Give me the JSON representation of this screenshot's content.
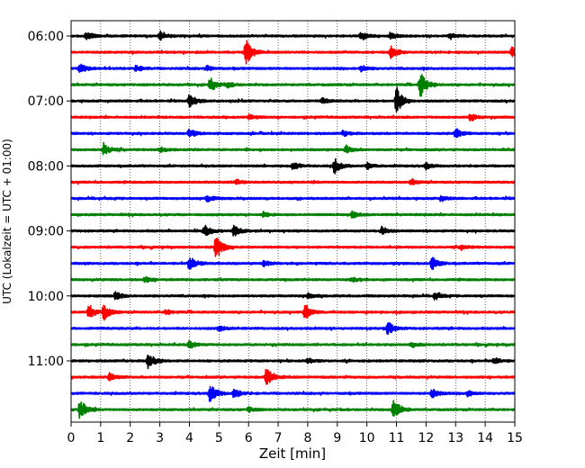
{
  "chart_data": {
    "type": "line",
    "title": "",
    "xlabel": "Zeit  [min]",
    "ylabel": "UTC (Lokalzeit = UTC + 01:00)",
    "xlim": [
      0,
      15
    ],
    "x_ticks": [
      0,
      1,
      2,
      3,
      4,
      5,
      6,
      7,
      8,
      9,
      10,
      11,
      12,
      13,
      14,
      15
    ],
    "row_minutes": 15,
    "y_tick_labels": [
      "06:00",
      "07:00",
      "08:00",
      "09:00",
      "10:00",
      "11:00"
    ],
    "y_tick_rows": [
      0,
      4,
      8,
      12,
      16,
      20
    ],
    "grid": "vertical-dotted",
    "row_colors": [
      "#000000",
      "#ff0000",
      "#0000ff",
      "#008000"
    ],
    "rows": [
      {
        "start": "06:00",
        "events": [
          [
            0.5,
            0.35
          ],
          [
            3.0,
            0.35
          ],
          [
            9.8,
            0.4
          ],
          [
            10.8,
            0.3
          ],
          [
            12.8,
            0.25
          ]
        ]
      },
      {
        "start": "06:15",
        "events": [
          [
            5.9,
            1.1
          ],
          [
            10.8,
            0.5
          ],
          [
            14.9,
            0.4
          ]
        ]
      },
      {
        "start": "06:30",
        "events": [
          [
            0.3,
            0.4
          ],
          [
            2.2,
            0.25
          ],
          [
            4.6,
            0.2
          ],
          [
            9.8,
            0.25
          ]
        ]
      },
      {
        "start": "06:45",
        "events": [
          [
            4.7,
            0.55
          ],
          [
            11.8,
            1.05
          ],
          [
            5.3,
            0.2
          ]
        ]
      },
      {
        "start": "07:00",
        "events": [
          [
            4.0,
            0.55
          ],
          [
            11.0,
            1.2
          ],
          [
            8.5,
            0.2
          ]
        ]
      },
      {
        "start": "07:15",
        "events": [
          [
            13.5,
            0.3
          ],
          [
            6.0,
            0.2
          ]
        ]
      },
      {
        "start": "07:30",
        "events": [
          [
            4.0,
            0.35
          ],
          [
            13.0,
            0.4
          ],
          [
            9.2,
            0.2
          ]
        ]
      },
      {
        "start": "07:45",
        "events": [
          [
            1.1,
            0.5
          ],
          [
            9.3,
            0.3
          ],
          [
            3.0,
            0.2
          ]
        ]
      },
      {
        "start": "08:00",
        "events": [
          [
            7.5,
            0.3
          ],
          [
            8.9,
            0.6
          ],
          [
            12.0,
            0.25
          ],
          [
            10.0,
            0.25
          ]
        ]
      },
      {
        "start": "08:15",
        "events": [
          [
            5.6,
            0.2
          ],
          [
            11.5,
            0.2
          ]
        ]
      },
      {
        "start": "08:30",
        "events": [
          [
            4.6,
            0.25
          ],
          [
            12.5,
            0.2
          ]
        ]
      },
      {
        "start": "08:45",
        "events": [
          [
            9.5,
            0.25
          ],
          [
            6.5,
            0.2
          ]
        ]
      },
      {
        "start": "09:00",
        "events": [
          [
            4.5,
            0.45
          ],
          [
            5.5,
            0.45
          ],
          [
            10.5,
            0.25
          ]
        ]
      },
      {
        "start": "09:15",
        "events": [
          [
            4.9,
            1.0
          ],
          [
            13.2,
            0.2
          ]
        ]
      },
      {
        "start": "09:30",
        "events": [
          [
            4.0,
            0.6
          ],
          [
            12.2,
            0.5
          ],
          [
            6.5,
            0.25
          ]
        ]
      },
      {
        "start": "09:45",
        "events": [
          [
            2.5,
            0.2
          ],
          [
            9.5,
            0.2
          ]
        ]
      },
      {
        "start": "10:00",
        "events": [
          [
            1.5,
            0.3
          ],
          [
            12.3,
            0.3
          ],
          [
            8.0,
            0.2
          ]
        ]
      },
      {
        "start": "10:15",
        "events": [
          [
            0.6,
            0.55
          ],
          [
            1.1,
            0.6
          ],
          [
            7.9,
            0.6
          ],
          [
            3.2,
            0.2
          ]
        ]
      },
      {
        "start": "10:30",
        "events": [
          [
            10.7,
            0.55
          ],
          [
            5.0,
            0.2
          ]
        ]
      },
      {
        "start": "10:45",
        "events": [
          [
            4.0,
            0.3
          ],
          [
            11.5,
            0.2
          ]
        ]
      },
      {
        "start": "11:00",
        "events": [
          [
            2.6,
            0.7
          ],
          [
            14.3,
            0.25
          ],
          [
            8.0,
            0.2
          ]
        ]
      },
      {
        "start": "11:15",
        "events": [
          [
            6.6,
            0.8
          ],
          [
            1.3,
            0.3
          ]
        ]
      },
      {
        "start": "11:30",
        "events": [
          [
            4.7,
            0.85
          ],
          [
            5.5,
            0.4
          ],
          [
            12.2,
            0.35
          ],
          [
            13.4,
            0.25
          ]
        ]
      },
      {
        "start": "11:45",
        "events": [
          [
            0.3,
            0.85
          ],
          [
            10.9,
            0.95
          ],
          [
            6.0,
            0.2
          ]
        ]
      }
    ]
  }
}
